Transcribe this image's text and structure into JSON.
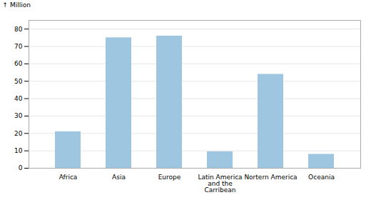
{
  "chart_data": {
    "type": "bar",
    "ylabel": "Million",
    "categories": [
      "Africa",
      "Asia",
      "Europe",
      "Latin America\nand the\nCarribean",
      "Nortern America",
      "Oceania"
    ],
    "values": [
      21,
      75,
      76,
      9.5,
      54,
      8
    ],
    "color": "#9ec6e0",
    "ylim": [
      0,
      85
    ],
    "yticks": [
      0,
      10,
      20,
      30,
      40,
      50,
      60,
      70,
      80
    ],
    "grid": true
  }
}
